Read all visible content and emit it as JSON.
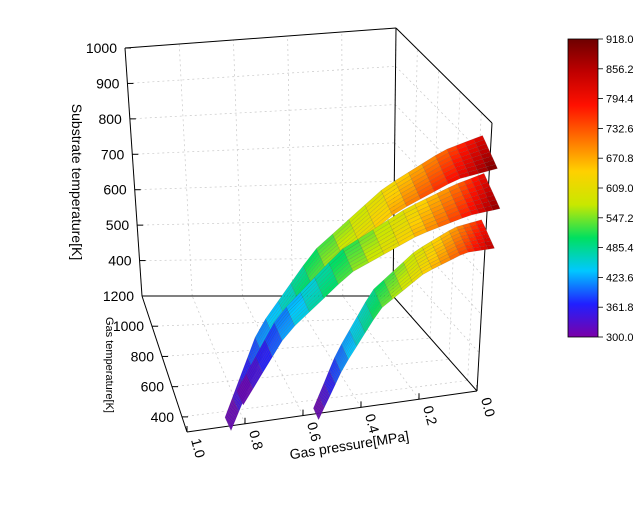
{
  "chart_data": {
    "type": "surface3d",
    "axes": {
      "z": {
        "label": "Substrate temperature[K]",
        "ticks": [
          "400",
          "500",
          "600",
          "700",
          "800",
          "900",
          "1000"
        ],
        "range": [
          300,
          1000
        ]
      },
      "y": {
        "label": "Gas temperature[K]",
        "ticks": [
          "400",
          "600",
          "800",
          "1000",
          "1200"
        ],
        "range": [
          300,
          1200
        ]
      },
      "x": {
        "label": "Gas pressure[MPa]",
        "ticks": [
          "0.0",
          "0.2",
          "0.4",
          "0.6",
          "0.8",
          "1.0"
        ],
        "range": [
          0.0,
          1.0
        ]
      }
    },
    "grid": true,
    "colorbar": {
      "min": 300.0,
      "max": 918.0,
      "ticks": [
        "918.0",
        "856.2",
        "794.4",
        "732.6",
        "670.8",
        "609.0",
        "547.2",
        "485.4",
        "423.6",
        "361.8",
        "300.0"
      ],
      "colors": [
        "#7b00a8",
        "#2020ff",
        "#00c8ff",
        "#00e060",
        "#c8e800",
        "#ffd000",
        "#ff7000",
        "#ff1000",
        "#c00000",
        "#6e0000"
      ]
    },
    "series": [
      {
        "pressure_range": [
          0.0,
          0.9
        ],
        "temperature_range": [
          300,
          918
        ]
      },
      {
        "pressure_range": [
          0.0,
          0.9
        ],
        "temperature_range": [
          300,
          900
        ]
      },
      {
        "pressure_range": [
          0.0,
          0.6
        ],
        "temperature_range": [
          300,
          860
        ]
      }
    ]
  }
}
